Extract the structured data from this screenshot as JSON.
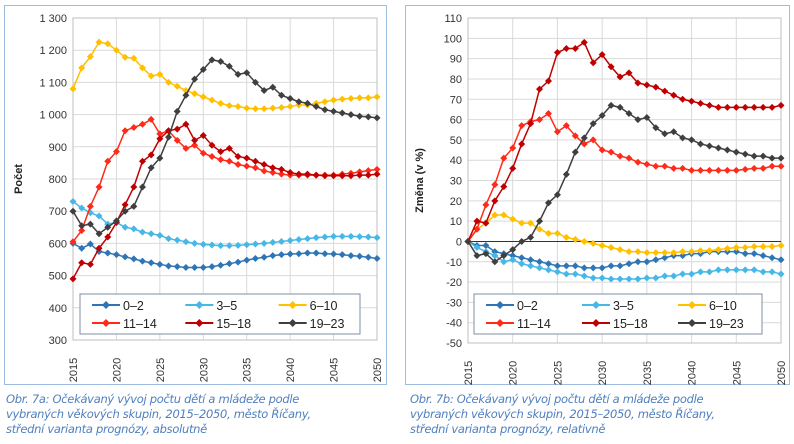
{
  "colors": {
    "0–2": "#2e75b6",
    "3–5": "#45b8e8",
    "6–10": "#ffc000",
    "11–14": "#ff2a1a",
    "15–18": "#c00000",
    "19–23": "#3f3f3f",
    "panel_border": "#9dbbe0",
    "caption": "#4f7fbf"
  },
  "captions": [
    {
      "line1": "Obr. 7a: Očekávaný vývoj počtu dětí a mládeže podle",
      "line2": "vybraných věkových skupin, 2015–2050, město Říčany,",
      "line3": "střední varianta prognózy, absolutně"
    },
    {
      "line1": "Obr. 7b: Očekávaný vývoj počtu dětí a mládeže podle",
      "line2": "vybraných věkových skupin, 2015–2050, město Říčany,",
      "line3": "střední varianta prognózy, relativně"
    }
  ],
  "chart_data": [
    {
      "type": "line",
      "title": "",
      "xlabel": "",
      "ylabel": "Počet",
      "ylim": [
        300,
        1300
      ],
      "xlim": [
        2015,
        2050
      ],
      "yticks": [
        300,
        400,
        500,
        600,
        700,
        800,
        900,
        1000,
        1100,
        1200,
        1300
      ],
      "ytick_labels": [
        "300",
        "400",
        "500",
        "600",
        "700",
        "800",
        "900",
        "1 000",
        "1 100",
        "1 200",
        "1 300"
      ],
      "xticks": [
        "2015",
        "2020",
        "2025",
        "2030",
        "2035",
        "2040",
        "2045",
        "2050"
      ],
      "grid": true,
      "legend": "bottom-inside",
      "x_start": 2015,
      "series": [
        {
          "name": "0–2",
          "values": [
            600,
            585,
            598,
            575,
            570,
            565,
            558,
            552,
            545,
            540,
            535,
            530,
            528,
            525,
            525,
            525,
            528,
            532,
            537,
            542,
            548,
            553,
            557,
            562,
            565,
            567,
            568,
            570,
            570,
            568,
            567,
            565,
            562,
            560,
            557,
            553
          ]
        },
        {
          "name": "3–5",
          "values": [
            730,
            710,
            695,
            685,
            660,
            665,
            650,
            645,
            635,
            630,
            625,
            615,
            610,
            605,
            600,
            597,
            595,
            593,
            593,
            594,
            596,
            598,
            600,
            603,
            606,
            609,
            612,
            615,
            618,
            620,
            622,
            622,
            622,
            621,
            620,
            618
          ]
        },
        {
          "name": "6–10",
          "values": [
            1080,
            1145,
            1180,
            1225,
            1220,
            1200,
            1178,
            1175,
            1145,
            1120,
            1125,
            1100,
            1088,
            1075,
            1065,
            1055,
            1045,
            1035,
            1028,
            1025,
            1020,
            1018,
            1018,
            1020,
            1022,
            1025,
            1030,
            1030,
            1035,
            1040,
            1045,
            1048,
            1050,
            1052,
            1052,
            1055
          ]
        },
        {
          "name": "11–14",
          "values": [
            605,
            640,
            715,
            775,
            855,
            885,
            950,
            960,
            970,
            985,
            940,
            950,
            920,
            895,
            905,
            880,
            870,
            860,
            855,
            845,
            840,
            835,
            825,
            820,
            815,
            812,
            812,
            812,
            812,
            812,
            812,
            815,
            818,
            822,
            826,
            830
          ]
        },
        {
          "name": "15–18",
          "values": [
            490,
            540,
            535,
            585,
            620,
            665,
            720,
            775,
            855,
            875,
            925,
            950,
            955,
            970,
            920,
            935,
            905,
            885,
            895,
            870,
            865,
            855,
            845,
            835,
            830,
            820,
            815,
            815,
            812,
            810,
            810,
            810,
            810,
            812,
            812,
            815
          ]
        },
        {
          "name": "19–23",
          "values": [
            700,
            655,
            660,
            630,
            650,
            670,
            700,
            715,
            775,
            835,
            865,
            930,
            1010,
            1060,
            1110,
            1140,
            1170,
            1165,
            1150,
            1125,
            1130,
            1100,
            1075,
            1085,
            1060,
            1050,
            1040,
            1035,
            1025,
            1015,
            1010,
            1005,
            1000,
            995,
            993,
            990
          ]
        }
      ]
    },
    {
      "type": "line",
      "title": "",
      "xlabel": "",
      "ylabel": "Změna (v %)",
      "ylim": [
        -50,
        110
      ],
      "xlim": [
        2015,
        2050
      ],
      "yticks": [
        -50,
        -40,
        -30,
        -20,
        -10,
        0,
        10,
        20,
        30,
        40,
        50,
        60,
        70,
        80,
        90,
        100,
        110
      ],
      "ytick_labels": [
        "-50",
        "-40",
        "-30",
        "-20",
        "-10",
        "0",
        "10",
        "20",
        "30",
        "40",
        "50",
        "60",
        "70",
        "80",
        "90",
        "100",
        "110"
      ],
      "xticks": [
        "2015",
        "2020",
        "2025",
        "2030",
        "2035",
        "2040",
        "2045",
        "2050"
      ],
      "grid": true,
      "legend": "bottom-inside",
      "x_start": 2015,
      "series": [
        {
          "name": "0–2",
          "values": [
            0,
            -2,
            -2,
            -5,
            -6,
            -7,
            -8,
            -9,
            -10,
            -11,
            -12,
            -12,
            -12,
            -13,
            -13,
            -13,
            -12,
            -12,
            -11,
            -10,
            -10,
            -9,
            -8,
            -7,
            -7,
            -6,
            -6,
            -5,
            -5,
            -5,
            -5,
            -6,
            -6,
            -7,
            -8,
            -9
          ]
        },
        {
          "name": "3–5",
          "values": [
            0,
            -3,
            -5,
            -7,
            -10,
            -9,
            -11,
            -12,
            -13,
            -14,
            -15,
            -16,
            -16,
            -17,
            -18,
            -18,
            -18.5,
            -18.5,
            -18.5,
            -18.5,
            -18,
            -18,
            -17,
            -17,
            -16,
            -16,
            -15,
            -15,
            -14,
            -14,
            -14,
            -14,
            -14,
            -15,
            -15,
            -16
          ]
        },
        {
          "name": "6–10",
          "values": [
            0,
            6,
            9,
            13,
            13,
            11,
            9,
            9,
            6,
            4,
            4,
            2,
            1,
            0,
            -1,
            -2,
            -3,
            -4,
            -5,
            -5,
            -5.5,
            -5.5,
            -5.5,
            -5.5,
            -5,
            -5,
            -4.5,
            -4.5,
            -4,
            -3.5,
            -3,
            -3,
            -2.5,
            -2.5,
            -2.5,
            -2
          ]
        },
        {
          "name": "11–14",
          "values": [
            0,
            6,
            18,
            28,
            41,
            46,
            57,
            59,
            60,
            63,
            54,
            57,
            52,
            48,
            50,
            45,
            44,
            42,
            41,
            39,
            38,
            37,
            37,
            36,
            36,
            35,
            35,
            35,
            35,
            35,
            35,
            35.5,
            36,
            36,
            37,
            37
          ]
        },
        {
          "name": "15–18",
          "values": [
            0,
            10,
            9,
            20,
            27,
            36,
            48,
            58,
            75,
            79,
            93,
            95,
            95,
            98,
            88,
            92,
            86,
            81,
            83,
            78,
            77,
            76,
            74,
            72,
            70,
            69,
            68,
            67,
            66,
            66,
            66,
            66,
            66,
            66,
            66,
            67
          ]
        },
        {
          "name": "19–23",
          "values": [
            0,
            -7,
            -6,
            -10,
            -7,
            -4,
            0,
            2,
            10,
            19,
            23,
            33,
            44,
            51,
            58,
            62,
            67,
            66,
            63,
            60,
            61,
            56,
            53,
            54,
            51,
            50,
            48,
            47,
            46,
            45,
            44,
            43,
            42,
            42,
            41,
            41
          ]
        }
      ]
    }
  ]
}
